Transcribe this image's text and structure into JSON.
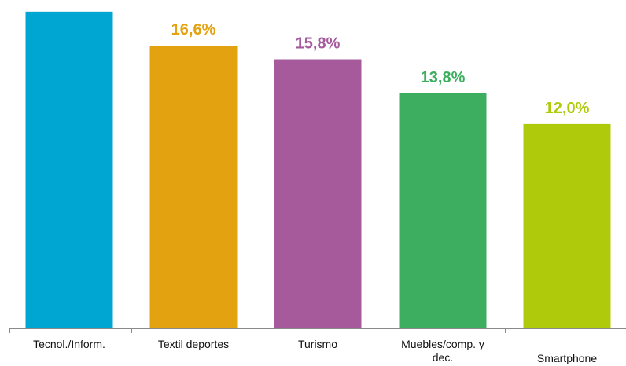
{
  "chart_data": {
    "type": "bar",
    "categories": [
      "Tecnol./Inform.",
      "Textil deportes",
      "Turismo",
      "Muebles/comp. y dec.",
      "Smartphone"
    ],
    "category_lines": [
      [
        "Tecnol./Inform."
      ],
      [
        "Textil deportes"
      ],
      [
        "Turismo"
      ],
      [
        "Muebles/comp. y",
        "dec."
      ],
      [
        "Smartphone"
      ]
    ],
    "values": [
      18.6,
      16.6,
      15.8,
      13.8,
      12.0
    ],
    "value_labels": [
      "",
      "16,6%",
      "15,8%",
      "13,8%",
      "12,0%"
    ],
    "colors": [
      "#00A6D2",
      "#E3A20F",
      "#A65A9C",
      "#3DAE5F",
      "#AFCA0B"
    ],
    "ylim": [
      0,
      19.1
    ],
    "title": "",
    "xlabel": "",
    "ylabel": "",
    "grid": false,
    "legend": "none"
  }
}
